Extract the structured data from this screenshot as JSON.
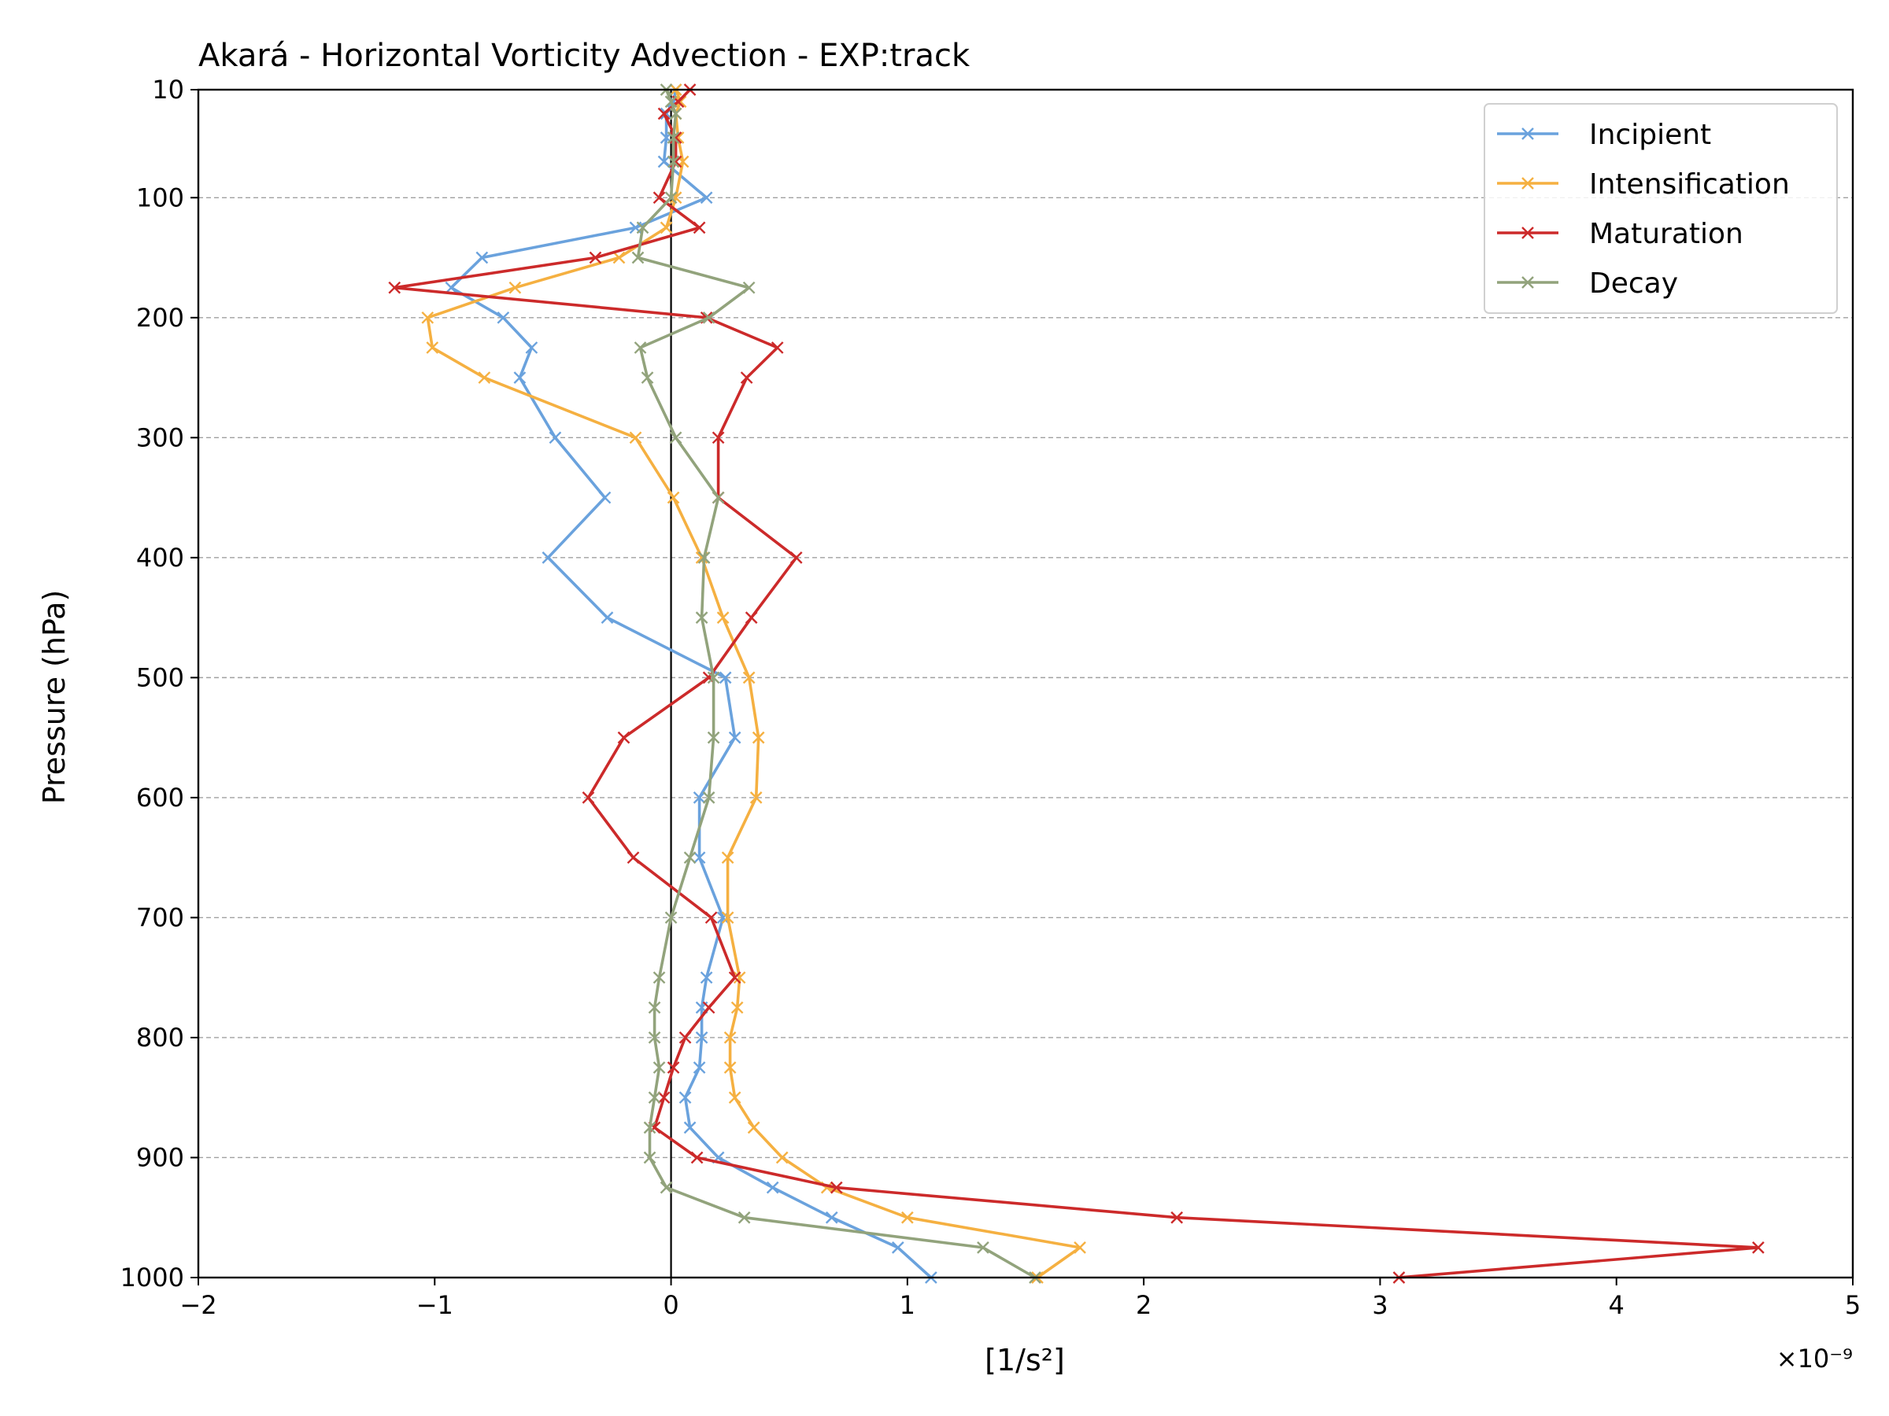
{
  "chart_data": {
    "type": "line",
    "title": "Akará - Horizontal Vorticity Advection - EXP:track",
    "xlabel": "[1/s²]",
    "ylabel": "Pressure (hPa)",
    "x_offset_label": "×10⁻⁹",
    "xlim": [
      -2,
      5
    ],
    "ylim": [
      1000,
      10
    ],
    "y_inverted": true,
    "x_ticks": [
      -2,
      -1,
      0,
      1,
      2,
      3,
      4,
      5
    ],
    "x_tick_labels": [
      "−2",
      "−1",
      "0",
      "1",
      "2",
      "3",
      "4",
      "5"
    ],
    "y_ticks": [
      10,
      100,
      200,
      300,
      400,
      500,
      600,
      700,
      800,
      900,
      1000
    ],
    "y_tick_labels": [
      "10",
      "100",
      "200",
      "300",
      "400",
      "500",
      "600",
      "700",
      "800",
      "900",
      "1000"
    ],
    "grid": "horizontal-dashed",
    "zero_line": true,
    "legend_position": "top-right",
    "pressure_levels": [
      10,
      20,
      30,
      50,
      70,
      100,
      125,
      150,
      175,
      200,
      225,
      250,
      300,
      350,
      400,
      450,
      500,
      550,
      600,
      650,
      700,
      750,
      775,
      800,
      825,
      850,
      875,
      900,
      925,
      950,
      975,
      1000
    ],
    "series": [
      {
        "name": "Incipient",
        "color": "#6aa2dd",
        "values": [
          0.02,
          0.01,
          -0.02,
          -0.02,
          -0.03,
          0.15,
          -0.15,
          -0.8,
          -0.93,
          -0.71,
          -0.59,
          -0.64,
          -0.49,
          -0.28,
          -0.52,
          -0.27,
          0.23,
          0.27,
          0.12,
          0.12,
          0.22,
          0.15,
          0.13,
          0.13,
          0.12,
          0.06,
          0.08,
          0.2,
          0.43,
          0.68,
          0.96,
          1.1
        ]
      },
      {
        "name": "Intensification",
        "color": "#f5b041",
        "values": [
          0.02,
          0.04,
          0.02,
          0.03,
          0.05,
          0.02,
          -0.02,
          -0.22,
          -0.66,
          -1.03,
          -1.01,
          -0.79,
          -0.15,
          0.01,
          0.13,
          0.22,
          0.33,
          0.37,
          0.36,
          0.24,
          0.24,
          0.29,
          0.28,
          0.25,
          0.25,
          0.27,
          0.35,
          0.47,
          0.66,
          1.0,
          1.73,
          1.55
        ]
      },
      {
        "name": "Maturation",
        "color": "#cc2a2a",
        "values": [
          0.08,
          0.03,
          -0.03,
          0.02,
          0.02,
          -0.05,
          0.12,
          -0.32,
          -1.17,
          0.15,
          0.45,
          0.32,
          0.2,
          0.2,
          0.53,
          0.34,
          0.16,
          -0.2,
          -0.35,
          -0.16,
          0.17,
          0.27,
          0.16,
          0.06,
          0.01,
          -0.03,
          -0.07,
          0.11,
          0.7,
          2.14,
          4.6,
          3.08
        ]
      },
      {
        "name": "Decay",
        "color": "#92a37c",
        "values": [
          -0.02,
          0.0,
          0.02,
          0.01,
          0.01,
          0.0,
          -0.12,
          -0.14,
          0.33,
          0.16,
          -0.13,
          -0.1,
          0.02,
          0.2,
          0.14,
          0.13,
          0.18,
          0.18,
          0.16,
          0.08,
          0.0,
          -0.05,
          -0.07,
          -0.07,
          -0.05,
          -0.07,
          -0.09,
          -0.09,
          -0.02,
          0.31,
          1.32,
          1.54
        ]
      }
    ]
  }
}
